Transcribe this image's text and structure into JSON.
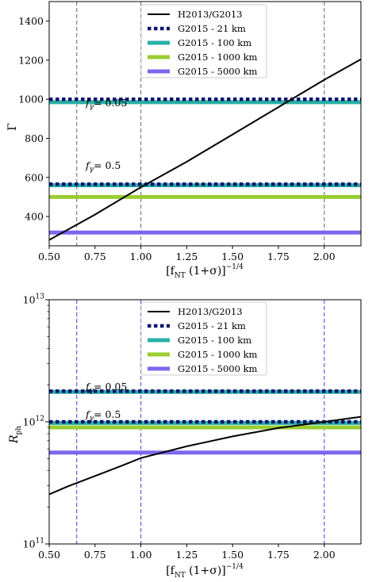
{
  "chart_data": [
    {
      "type": "line",
      "xlabel": "[f_NT (1+σ)]^{-1/4}",
      "ylabel": "Γ",
      "xlim": [
        0.5,
        2.2
      ],
      "ylim": [
        250,
        1500
      ],
      "yscale": "linear",
      "xticks": [
        "0.50",
        "0.75",
        "1.00",
        "1.25",
        "1.50",
        "1.75",
        "2.00"
      ],
      "yticks": [
        "400",
        "600",
        "800",
        "1000",
        "1200",
        "1400"
      ],
      "vlines": [
        0.65,
        1.0,
        2.0
      ],
      "vline_color": "#808080",
      "annotations": [
        {
          "text": "f_γ = 0.05",
          "x": 0.64,
          "y": 945
        },
        {
          "text": "f_γ = 0.5",
          "x": 0.64,
          "y": 590
        }
      ],
      "legend_position": "top-right",
      "series": [
        {
          "name": "H2013/G2013",
          "style": "solid",
          "color": "#000000",
          "x": [
            0.5,
            0.75,
            1.0,
            1.25,
            1.5,
            1.75,
            2.0,
            2.2
          ],
          "y": [
            280,
            410,
            550,
            680,
            820,
            960,
            1100,
            1205
          ]
        },
        {
          "name": "G2015 - 21 km",
          "style": "dotted",
          "color": "#0d1470",
          "constant": 1000,
          "constant2": 565
        },
        {
          "name": "G2015 - 100 km",
          "style": "solid",
          "color": "#29b0a6",
          "constant": 985,
          "constant2": 560
        },
        {
          "name": "G2015 - 1000 km",
          "style": "solid",
          "color": "#9acd32",
          "constant": null,
          "constant2": 500
        },
        {
          "name": "G2015 - 5000 km",
          "style": "solid",
          "color": "#7b68ee",
          "constant": null,
          "constant2": 318
        }
      ]
    },
    {
      "type": "line",
      "xlabel": "[f_NT (1+σ)]^{-1/4}",
      "ylabel": "R_ph",
      "xlim": [
        0.5,
        2.2
      ],
      "ylim": [
        100000000000.0,
        10000000000000.0
      ],
      "yscale": "log",
      "xticks": [
        "0.50",
        "0.75",
        "1.00",
        "1.25",
        "1.50",
        "1.75",
        "2.00"
      ],
      "yticks": [
        "10^11",
        "10^12",
        "10^13"
      ],
      "vlines": [
        0.65,
        1.0,
        2.0
      ],
      "vline_color": "#6a5ae0",
      "annotations": [
        {
          "text": "f_γ = 0.05",
          "x": 0.64,
          "y": 1950000000000.0
        },
        {
          "text": "f_γ = 0.5",
          "x": 0.64,
          "y": 1120000000000.0
        }
      ],
      "legend_position": "top-right",
      "series": [
        {
          "name": "H2013/G2013",
          "style": "solid",
          "color": "#000000",
          "x": [
            0.5,
            0.6,
            0.75,
            0.9,
            1.0,
            1.25,
            1.5,
            1.75,
            2.0,
            2.2
          ],
          "y": [
            255000000000.0,
            295000000000.0,
            360000000000.0,
            440000000000.0,
            505000000000.0,
            630000000000.0,
            760000000000.0,
            890000000000.0,
            1000000000000.0,
            1100000000000.0
          ]
        },
        {
          "name": "G2015 - 21 km",
          "style": "dotted",
          "color": "#0d1470",
          "constant": 1780000000000.0,
          "constant2": 1000000000000.0
        },
        {
          "name": "G2015 - 100 km",
          "style": "solid",
          "color": "#29b0a6",
          "constant": 1760000000000.0,
          "constant2": 980000000000.0
        },
        {
          "name": "G2015 - 1000 km",
          "style": "solid",
          "color": "#9acd32",
          "constant": null,
          "constant2": 900000000000.0
        },
        {
          "name": "G2015 - 5000 km",
          "style": "solid",
          "color": "#7b68ee",
          "constant": null,
          "constant2": 560000000000.0
        }
      ]
    }
  ]
}
